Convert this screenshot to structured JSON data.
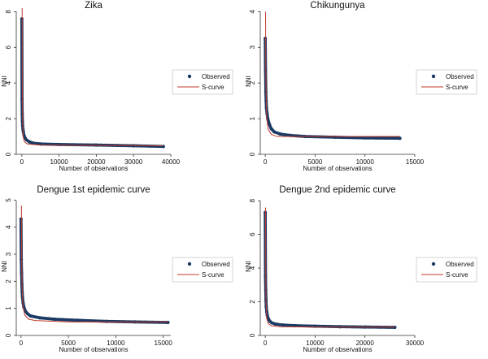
{
  "figure": {
    "observed_color": "#1a3a64",
    "curve_color": "#c0392b",
    "axis_color": "#333333"
  },
  "chart_data": [
    {
      "type": "scatter",
      "title": "Zika",
      "xlabel": "Number of observations",
      "ylabel": "NNI",
      "xlim": [
        -1500,
        40000
      ],
      "ylim": [
        0,
        8.2
      ],
      "xticks": [
        0,
        10000,
        20000,
        30000,
        40000
      ],
      "yticks": [
        0,
        2,
        4,
        6,
        8
      ],
      "legend": [
        "Observed",
        "S-curve"
      ],
      "observed": [
        [
          0,
          7.6
        ],
        [
          50,
          3.1
        ],
        [
          100,
          2.25
        ],
        [
          150,
          1.85
        ],
        [
          200,
          1.6
        ],
        [
          300,
          1.4
        ],
        [
          400,
          1.25
        ],
        [
          600,
          1.05
        ],
        [
          900,
          0.9
        ],
        [
          1300,
          0.8
        ],
        [
          2000,
          0.7
        ],
        [
          3000,
          0.63
        ],
        [
          5000,
          0.58
        ],
        [
          10000,
          0.55
        ],
        [
          20000,
          0.52
        ],
        [
          30000,
          0.48
        ],
        [
          38000,
          0.44
        ]
      ],
      "s_curve": [
        [
          80,
          8.2
        ],
        [
          120,
          4.0
        ],
        [
          200,
          1.8
        ],
        [
          400,
          0.95
        ],
        [
          700,
          0.7
        ],
        [
          1500,
          0.58
        ],
        [
          5000,
          0.52
        ],
        [
          15000,
          0.5
        ],
        [
          25000,
          0.5
        ],
        [
          38000,
          0.48
        ]
      ]
    },
    {
      "type": "scatter",
      "title": "Chikungunya",
      "xlabel": "Number of observations",
      "ylabel": "NNI",
      "xlim": [
        -500,
        15000
      ],
      "ylim": [
        0,
        4.1
      ],
      "xticks": [
        0,
        5000,
        10000,
        15000
      ],
      "yticks": [
        0,
        1,
        2,
        3,
        4
      ],
      "legend": [
        "Observed",
        "S-curve"
      ],
      "observed": [
        [
          0,
          3.25
        ],
        [
          30,
          2.35
        ],
        [
          60,
          1.75
        ],
        [
          90,
          1.5
        ],
        [
          120,
          1.3
        ],
        [
          180,
          1.15
        ],
        [
          250,
          1.0
        ],
        [
          400,
          0.85
        ],
        [
          600,
          0.72
        ],
        [
          900,
          0.63
        ],
        [
          1500,
          0.57
        ],
        [
          2500,
          0.53
        ],
        [
          4000,
          0.5
        ],
        [
          7000,
          0.48
        ],
        [
          10000,
          0.46
        ],
        [
          13500,
          0.45
        ]
      ],
      "s_curve": [
        [
          30,
          4.0
        ],
        [
          50,
          2.8
        ],
        [
          80,
          1.8
        ],
        [
          150,
          1.0
        ],
        [
          300,
          0.7
        ],
        [
          600,
          0.56
        ],
        [
          1200,
          0.5
        ],
        [
          3000,
          0.5
        ],
        [
          8000,
          0.5
        ],
        [
          13500,
          0.5
        ]
      ]
    },
    {
      "type": "scatter",
      "title": "Dengue 1st epidemic curve",
      "xlabel": "Number of observations",
      "ylabel": "NNI",
      "xlim": [
        -500,
        15800
      ],
      "ylim": [
        0,
        5.1
      ],
      "xticks": [
        0,
        5000,
        10000,
        15000
      ],
      "yticks": [
        0,
        1,
        2,
        3,
        4,
        5
      ],
      "legend": [
        "Observed",
        "S-curve"
      ],
      "observed": [
        [
          0,
          4.3
        ],
        [
          30,
          2.8
        ],
        [
          60,
          2.3
        ],
        [
          90,
          1.9
        ],
        [
          120,
          1.6
        ],
        [
          160,
          1.4
        ],
        [
          220,
          1.2
        ],
        [
          300,
          1.05
        ],
        [
          450,
          0.9
        ],
        [
          700,
          0.8
        ],
        [
          1000,
          0.72
        ],
        [
          2000,
          0.65
        ],
        [
          3500,
          0.6
        ],
        [
          6000,
          0.56
        ],
        [
          9000,
          0.52
        ],
        [
          12000,
          0.5
        ],
        [
          15500,
          0.48
        ]
      ],
      "s_curve": [
        [
          40,
          4.8
        ],
        [
          70,
          3.0
        ],
        [
          110,
          1.8
        ],
        [
          200,
          1.1
        ],
        [
          400,
          0.75
        ],
        [
          800,
          0.6
        ],
        [
          1500,
          0.55
        ],
        [
          5000,
          0.5
        ],
        [
          10000,
          0.5
        ],
        [
          15500,
          0.5
        ]
      ]
    },
    {
      "type": "scatter",
      "title": "Dengue 2nd epidemic curve",
      "xlabel": "Number of observations",
      "ylabel": "NNI",
      "xlim": [
        -1000,
        30000
      ],
      "ylim": [
        0,
        8.2
      ],
      "xticks": [
        0,
        10000,
        20000,
        30000
      ],
      "yticks": [
        0,
        2,
        4,
        6,
        8
      ],
      "legend": [
        "Observed",
        "S-curve"
      ],
      "observed": [
        [
          0,
          7.3
        ],
        [
          50,
          3.5
        ],
        [
          100,
          2.7
        ],
        [
          150,
          2.1
        ],
        [
          200,
          1.7
        ],
        [
          300,
          1.4
        ],
        [
          400,
          1.2
        ],
        [
          600,
          1.0
        ],
        [
          900,
          0.85
        ],
        [
          1300,
          0.75
        ],
        [
          2000,
          0.68
        ],
        [
          3500,
          0.62
        ],
        [
          6000,
          0.58
        ],
        [
          10000,
          0.55
        ],
        [
          15000,
          0.52
        ],
        [
          20000,
          0.5
        ],
        [
          26000,
          0.48
        ]
      ],
      "s_curve": [
        [
          60,
          7.6
        ],
        [
          100,
          4.0
        ],
        [
          160,
          2.0
        ],
        [
          300,
          1.0
        ],
        [
          600,
          0.7
        ],
        [
          1200,
          0.58
        ],
        [
          3000,
          0.52
        ],
        [
          10000,
          0.5
        ],
        [
          20000,
          0.5
        ],
        [
          26000,
          0.5
        ]
      ]
    }
  ]
}
